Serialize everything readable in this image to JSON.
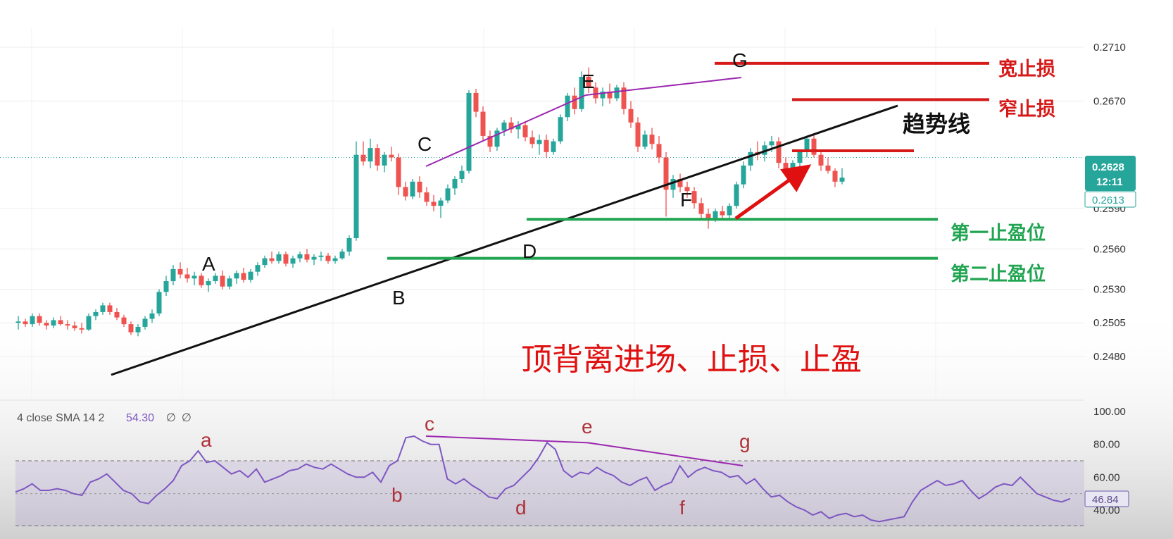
{
  "title": "顶背离进场、止损、止盈",
  "price_axis": {
    "ticks": [
      "0.2710",
      "0.2670",
      "0.2590",
      "0.2560",
      "0.2530",
      "0.2505",
      "0.2480"
    ],
    "tick_values": [
      0.271,
      0.267,
      0.259,
      0.256,
      0.253,
      0.2505,
      0.248
    ]
  },
  "price_badges": {
    "last": "0.2628",
    "timer": "12:11",
    "secondary": "0.2613"
  },
  "point_labels": {
    "A": "A",
    "B": "B",
    "C": "C",
    "D": "D",
    "E": "E",
    "F": "F",
    "G": "G"
  },
  "annotations": {
    "wide_stop": "宽止损",
    "narrow_stop": "窄止损",
    "trend_line": "趋势线",
    "tp1": "第一止盈位",
    "tp2": "第二止盈位"
  },
  "colors": {
    "up": "#26a69a",
    "down": "#ef5350",
    "stop_red": "#d61a1a",
    "tp_green": "#22a552",
    "rsi_line": "#7e57c2",
    "divergence": "#9c27b0"
  },
  "rsi": {
    "title": "4 close SMA 14 2",
    "value": "54.30",
    "na1": "∅",
    "na2": "∅",
    "badge": "46.84",
    "ticks": [
      "100.00",
      "80.00",
      "60.00",
      "40.00"
    ],
    "tick_values": [
      100,
      80,
      60,
      40
    ],
    "labels": {
      "a": "a",
      "b": "b",
      "c": "c",
      "d": "d",
      "e": "e",
      "f": "f",
      "g": "g"
    }
  },
  "chart_data": [
    {
      "type": "candlestick",
      "title": "",
      "ylim": [
        0.2468,
        0.2722
      ],
      "levels": {
        "wide_stop": 0.2698,
        "narrow_stop": 0.2671,
        "entry": 0.2633,
        "take_profit_1": 0.2582,
        "take_profit_2": 0.2553
      },
      "candles": [
        [
          0.2505,
          0.251,
          0.25,
          0.2506
        ],
        [
          0.2506,
          0.2508,
          0.2502,
          0.2504
        ],
        [
          0.2504,
          0.2512,
          0.2502,
          0.251
        ],
        [
          0.251,
          0.2512,
          0.2503,
          0.2505
        ],
        [
          0.2505,
          0.2507,
          0.25,
          0.2503
        ],
        [
          0.2503,
          0.2509,
          0.2501,
          0.2507
        ],
        [
          0.2507,
          0.251,
          0.2503,
          0.2504
        ],
        [
          0.2504,
          0.2507,
          0.25,
          0.2503
        ],
        [
          0.2503,
          0.2506,
          0.2499,
          0.2501
        ],
        [
          0.2501,
          0.2505,
          0.2497,
          0.25
        ],
        [
          0.25,
          0.2512,
          0.2499,
          0.251
        ],
        [
          0.251,
          0.2515,
          0.2507,
          0.2513
        ],
        [
          0.2513,
          0.252,
          0.2511,
          0.2518
        ],
        [
          0.2518,
          0.252,
          0.2511,
          0.2513
        ],
        [
          0.2513,
          0.2516,
          0.2507,
          0.2509
        ],
        [
          0.2509,
          0.2511,
          0.2502,
          0.2504
        ],
        [
          0.2504,
          0.2506,
          0.2496,
          0.2498
        ],
        [
          0.2498,
          0.2504,
          0.2495,
          0.2502
        ],
        [
          0.2502,
          0.251,
          0.25,
          0.2508
        ],
        [
          0.2508,
          0.2515,
          0.2505,
          0.2512
        ],
        [
          0.2512,
          0.253,
          0.251,
          0.2528
        ],
        [
          0.2528,
          0.254,
          0.2525,
          0.2536
        ],
        [
          0.2536,
          0.2548,
          0.2533,
          0.2545
        ],
        [
          0.2545,
          0.255,
          0.2538,
          0.2541
        ],
        [
          0.2541,
          0.2546,
          0.2535,
          0.2538
        ],
        [
          0.2538,
          0.2543,
          0.2533,
          0.254
        ],
        [
          0.254,
          0.2542,
          0.2531,
          0.2533
        ],
        [
          0.2533,
          0.2538,
          0.2528,
          0.2536
        ],
        [
          0.2536,
          0.2542,
          0.2534,
          0.254
        ],
        [
          0.254,
          0.2544,
          0.253,
          0.2532
        ],
        [
          0.2532,
          0.254,
          0.253,
          0.2538
        ],
        [
          0.2538,
          0.2544,
          0.2534,
          0.2542
        ],
        [
          0.2542,
          0.2546,
          0.2535,
          0.2537
        ],
        [
          0.2537,
          0.2545,
          0.2535,
          0.2543
        ],
        [
          0.2543,
          0.255,
          0.254,
          0.2548
        ],
        [
          0.2548,
          0.2555,
          0.2546,
          0.2553
        ],
        [
          0.2553,
          0.2558,
          0.2549,
          0.2551
        ],
        [
          0.2551,
          0.2558,
          0.2549,
          0.2556
        ],
        [
          0.2556,
          0.2558,
          0.2547,
          0.2549
        ],
        [
          0.2549,
          0.2555,
          0.2546,
          0.2553
        ],
        [
          0.2553,
          0.2558,
          0.255,
          0.2556
        ],
        [
          0.2556,
          0.256,
          0.255,
          0.2552
        ],
        [
          0.2552,
          0.2556,
          0.2548,
          0.2554
        ],
        [
          0.2554,
          0.2558,
          0.2551,
          0.2555
        ],
        [
          0.2555,
          0.2557,
          0.2549,
          0.2551
        ],
        [
          0.2551,
          0.2555,
          0.2549,
          0.2553
        ],
        [
          0.2553,
          0.256,
          0.2552,
          0.2558
        ],
        [
          0.2558,
          0.257,
          0.2555,
          0.2568
        ],
        [
          0.2568,
          0.264,
          0.2566,
          0.263
        ],
        [
          0.263,
          0.264,
          0.2622,
          0.2625
        ],
        [
          0.2625,
          0.2642,
          0.262,
          0.2635
        ],
        [
          0.2635,
          0.2638,
          0.2618,
          0.2622
        ],
        [
          0.2622,
          0.2632,
          0.2617,
          0.263
        ],
        [
          0.263,
          0.2636,
          0.2625,
          0.2628
        ],
        [
          0.2628,
          0.2631,
          0.26,
          0.2606
        ],
        [
          0.2606,
          0.261,
          0.2596,
          0.2599
        ],
        [
          0.2599,
          0.2612,
          0.2597,
          0.261
        ],
        [
          0.261,
          0.2614,
          0.2598,
          0.2602
        ],
        [
          0.2602,
          0.2606,
          0.2592,
          0.2595
        ],
        [
          0.2595,
          0.26,
          0.2588,
          0.2592
        ],
        [
          0.2592,
          0.2598,
          0.2583,
          0.2596
        ],
        [
          0.2596,
          0.2608,
          0.2594,
          0.2605
        ],
        [
          0.2605,
          0.2614,
          0.26,
          0.2612
        ],
        [
          0.2612,
          0.2622,
          0.2609,
          0.2618
        ],
        [
          0.2618,
          0.2678,
          0.2616,
          0.2676
        ],
        [
          0.2676,
          0.2679,
          0.2658,
          0.2662
        ],
        [
          0.2662,
          0.2666,
          0.264,
          0.2644
        ],
        [
          0.2644,
          0.2648,
          0.2632,
          0.2636
        ],
        [
          0.2636,
          0.265,
          0.2633,
          0.2648
        ],
        [
          0.2648,
          0.2656,
          0.2644,
          0.2654
        ],
        [
          0.2654,
          0.2658,
          0.2646,
          0.2649
        ],
        [
          0.2649,
          0.2655,
          0.2642,
          0.2652
        ],
        [
          0.2652,
          0.2655,
          0.264,
          0.2643
        ],
        [
          0.2643,
          0.2648,
          0.2635,
          0.2638
        ],
        [
          0.2638,
          0.2645,
          0.263,
          0.2641
        ],
        [
          0.2641,
          0.2645,
          0.2628,
          0.2632
        ],
        [
          0.2632,
          0.2642,
          0.263,
          0.264
        ],
        [
          0.264,
          0.266,
          0.2638,
          0.2658
        ],
        [
          0.2658,
          0.2676,
          0.2655,
          0.2674
        ],
        [
          0.2674,
          0.268,
          0.266,
          0.2664
        ],
        [
          0.2664,
          0.2692,
          0.2662,
          0.2688
        ],
        [
          0.2688,
          0.2695,
          0.2676,
          0.268
        ],
        [
          0.268,
          0.2684,
          0.2668,
          0.2672
        ],
        [
          0.2672,
          0.268,
          0.2666,
          0.2677
        ],
        [
          0.2677,
          0.2683,
          0.2668,
          0.2672
        ],
        [
          0.2672,
          0.2682,
          0.267,
          0.268
        ],
        [
          0.268,
          0.2684,
          0.266,
          0.2664
        ],
        [
          0.2664,
          0.267,
          0.265,
          0.2654
        ],
        [
          0.2654,
          0.2658,
          0.2632,
          0.2636
        ],
        [
          0.2636,
          0.2648,
          0.2634,
          0.2645
        ],
        [
          0.2645,
          0.265,
          0.2634,
          0.2638
        ],
        [
          0.2638,
          0.2644,
          0.2624,
          0.2628
        ],
        [
          0.2628,
          0.2632,
          0.2584,
          0.2604
        ],
        [
          0.2604,
          0.2615,
          0.2598,
          0.2612
        ],
        [
          0.2612,
          0.2616,
          0.2602,
          0.2606
        ],
        [
          0.2606,
          0.261,
          0.2598,
          0.2603
        ],
        [
          0.2603,
          0.2606,
          0.259,
          0.2594
        ],
        [
          0.2594,
          0.2598,
          0.2581,
          0.2586
        ],
        [
          0.2586,
          0.259,
          0.2575,
          0.2583
        ],
        [
          0.2583,
          0.259,
          0.258,
          0.2588
        ],
        [
          0.2588,
          0.2592,
          0.2582,
          0.2585
        ],
        [
          0.2585,
          0.2594,
          0.2583,
          0.2592
        ],
        [
          0.2592,
          0.261,
          0.259,
          0.2608
        ],
        [
          0.2608,
          0.2625,
          0.2605,
          0.2622
        ],
        [
          0.2622,
          0.2635,
          0.2618,
          0.2632
        ],
        [
          0.2632,
          0.264,
          0.2626,
          0.263
        ],
        [
          0.263,
          0.264,
          0.2625,
          0.2637
        ],
        [
          0.2637,
          0.2644,
          0.2632,
          0.264
        ],
        [
          0.264,
          0.2643,
          0.262,
          0.2624
        ],
        [
          0.2624,
          0.2628,
          0.2614,
          0.2618
        ],
        [
          0.2618,
          0.2626,
          0.2615,
          0.2624
        ],
        [
          0.2624,
          0.2634,
          0.2621,
          0.2632
        ],
        [
          0.2632,
          0.2644,
          0.2628,
          0.2642
        ],
        [
          0.2642,
          0.2645,
          0.2628,
          0.263
        ],
        [
          0.263,
          0.2634,
          0.2618,
          0.2622
        ],
        [
          0.2622,
          0.2628,
          0.2616,
          0.2618
        ],
        [
          0.2618,
          0.262,
          0.2606,
          0.261
        ],
        [
          0.261,
          0.262,
          0.2608,
          0.2613
        ]
      ]
    },
    {
      "type": "line",
      "title": "",
      "series_name": "",
      "ylim": [
        32,
        100
      ],
      "overbought": 70,
      "oversold": 30,
      "mid": 50,
      "values": [
        51,
        53,
        56,
        52,
        52,
        53,
        52,
        50,
        49,
        57,
        59,
        62,
        57,
        52,
        50,
        45,
        44,
        49,
        53,
        58,
        67,
        70,
        76,
        69,
        70,
        66,
        62,
        64,
        60,
        65,
        57,
        59,
        61,
        64,
        65,
        68,
        66,
        65,
        68,
        65,
        62,
        60,
        60,
        63,
        57,
        67,
        70,
        84,
        85,
        82,
        80,
        80,
        59,
        56,
        59,
        55,
        52,
        48,
        47,
        53,
        55,
        60,
        65,
        72,
        81,
        77,
        64,
        60,
        63,
        62,
        66,
        63,
        61,
        57,
        55,
        58,
        60,
        52,
        55,
        57,
        67,
        60,
        64,
        66,
        64,
        63,
        60,
        61,
        56,
        59,
        53,
        48,
        49,
        45,
        42,
        40,
        37,
        39,
        35,
        37,
        38,
        36,
        37,
        34,
        33,
        34,
        35,
        36,
        45,
        52,
        55,
        58,
        55,
        56,
        58,
        52,
        47,
        50,
        54,
        56,
        55,
        60,
        55,
        50,
        48,
        46,
        45,
        47
      ]
    }
  ]
}
